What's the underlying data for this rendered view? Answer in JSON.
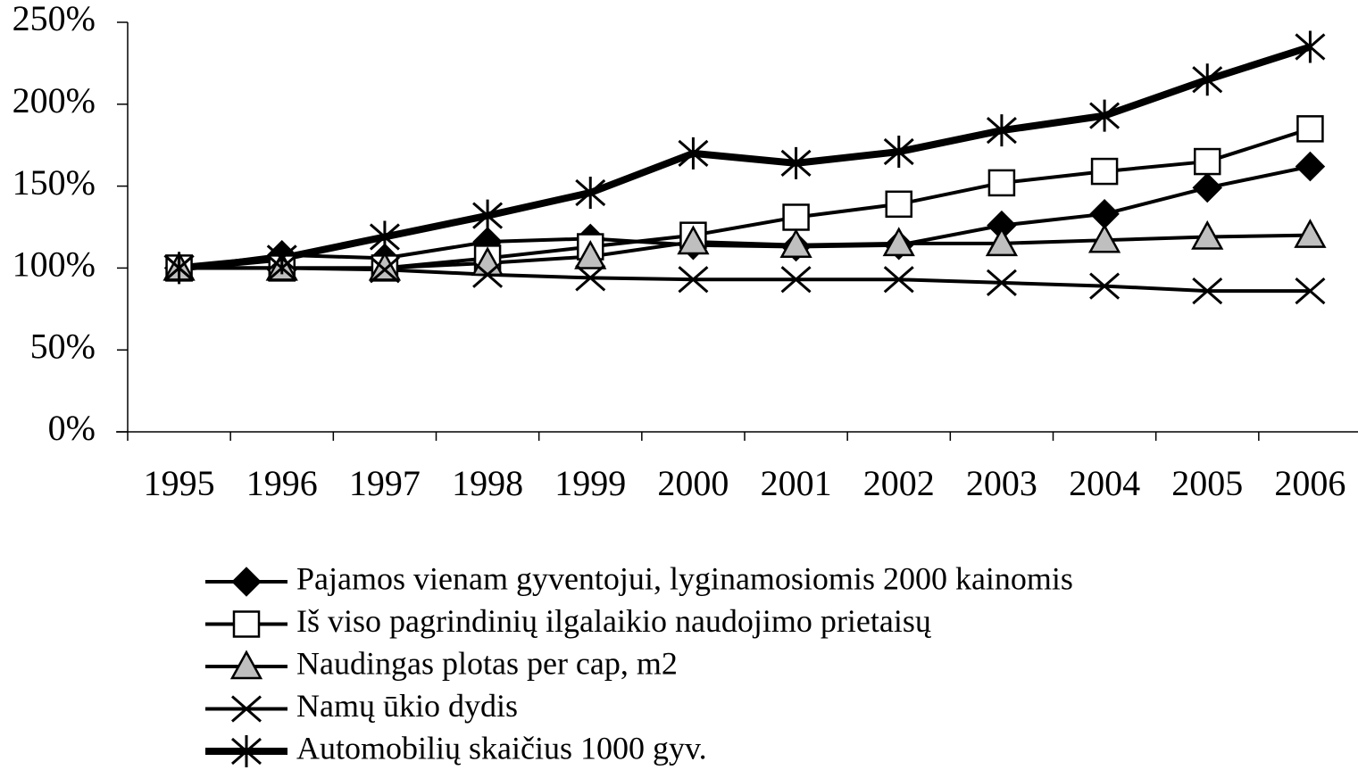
{
  "chart_data": {
    "type": "line",
    "categories": [
      "1995",
      "1996",
      "1997",
      "1998",
      "1999",
      "2000",
      "2001",
      "2002",
      "2003",
      "2004",
      "2005",
      "2006"
    ],
    "ylim": [
      0,
      250
    ],
    "yticks": [
      {
        "value": 0,
        "label": "0%"
      },
      {
        "value": 50,
        "label": "50%"
      },
      {
        "value": 100,
        "label": "100%"
      },
      {
        "value": 150,
        "label": "150%"
      },
      {
        "value": 200,
        "label": "200%"
      },
      {
        "value": 250,
        "label": "250%"
      }
    ],
    "grid": false,
    "legend": "bottom",
    "series": [
      {
        "name": "Pajamos vienam gyventojui, lyginamosiomis 2000 kainomis",
        "color": "#000000",
        "marker": "diamond",
        "marker_fill": "#000000",
        "line_width": 4,
        "values": [
          100,
          108,
          106,
          116,
          118,
          114,
          113,
          114,
          126,
          133,
          149,
          162
        ]
      },
      {
        "name": "Iš viso pagrindinių ilgalaikio naudojimo prietaisų",
        "color": "#000000",
        "marker": "square",
        "marker_fill": "#ffffff",
        "line_width": 4,
        "values": [
          100,
          100,
          100,
          106,
          113,
          120,
          131,
          139,
          152,
          159,
          165,
          185
        ]
      },
      {
        "name": "Naudingas plotas per cap, m2",
        "color": "#000000",
        "marker": "triangle",
        "marker_fill": "#bfbfbf",
        "line_width": 4,
        "values": [
          100,
          100,
          100,
          103,
          107,
          116,
          114,
          115,
          115,
          117,
          119,
          120
        ]
      },
      {
        "name": "Namų ūkio dydis",
        "color": "#000000",
        "marker": "x",
        "marker_fill": "none",
        "line_width": 4,
        "values": [
          100,
          100,
          99,
          96,
          94,
          93,
          93,
          93,
          91,
          89,
          86,
          86
        ]
      },
      {
        "name": "Automobilių skaičius 1000 gyv.",
        "color": "#000000",
        "marker": "asterisk",
        "marker_fill": "none",
        "line_width": 8,
        "values": [
          100,
          106,
          119,
          132,
          146,
          170,
          164,
          171,
          184,
          193,
          215,
          235
        ]
      }
    ]
  }
}
